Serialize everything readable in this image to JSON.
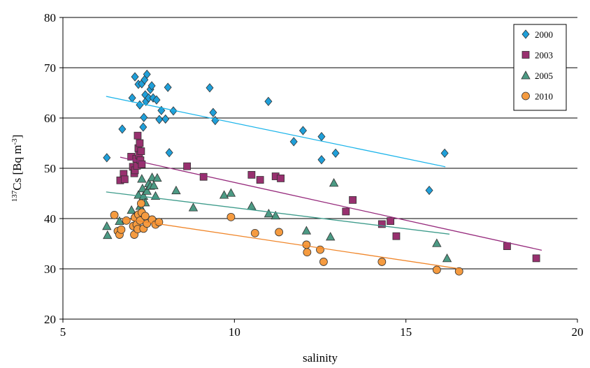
{
  "chart_data": {
    "type": "scatter",
    "xlabel": "salinity",
    "ylabel": [
      "137",
      "Cs [Bq m",
      "-3",
      "]"
    ],
    "xlim": [
      5,
      20
    ],
    "xticks": [
      5,
      10,
      15,
      20
    ],
    "ylim": [
      20,
      80
    ],
    "yticks": [
      20,
      30,
      40,
      50,
      60,
      70,
      80
    ],
    "grid": true,
    "legend": "upper right",
    "series": [
      {
        "name": "2000",
        "color": "#1f9fd9",
        "marker": "diamond",
        "line_color": "#1cb4ea",
        "x": [
          6.28,
          6.73,
          7.02,
          7.1,
          7.2,
          7.24,
          7.3,
          7.34,
          7.38,
          7.4,
          7.42,
          7.45,
          7.5,
          7.55,
          7.59,
          7.63,
          7.73,
          7.81,
          7.87,
          7.99,
          8.06,
          8.1,
          8.22,
          9.28,
          9.38,
          9.44,
          10.99,
          11.73,
          12.0,
          12.54,
          12.54,
          12.95,
          15.68,
          16.13,
          7.36
        ],
        "values": [
          52.1,
          57.8,
          64.0,
          68.2,
          66.7,
          62.6,
          66.8,
          58.2,
          67.6,
          64.6,
          63.3,
          68.7,
          64.0,
          65.7,
          66.4,
          64.0,
          63.6,
          59.7,
          61.5,
          59.8,
          66.1,
          53.1,
          61.4,
          66.0,
          61.1,
          59.5,
          63.3,
          55.3,
          57.5,
          56.3,
          51.7,
          53.0,
          45.6,
          53.0,
          60.1
        ],
        "trendline": {
          "x": [
            6.26,
            16.15
          ],
          "y": [
            64.3,
            50.3
          ]
        }
      },
      {
        "name": "2003",
        "color": "#98306f",
        "marker": "square",
        "line_color": "#962a7c",
        "x": [
          6.67,
          6.77,
          6.8,
          6.99,
          7.04,
          7.08,
          7.1,
          7.14,
          7.16,
          7.18,
          7.2,
          7.22,
          7.24,
          7.26,
          7.28,
          7.3,
          8.62,
          9.1,
          10.5,
          10.75,
          11.2,
          11.35,
          13.25,
          13.45,
          14.3,
          14.55,
          14.72,
          17.95,
          18.8
        ],
        "values": [
          47.6,
          48.9,
          47.8,
          52.3,
          50.3,
          49.0,
          49.6,
          51.9,
          50.5,
          56.5,
          54.0,
          52.6,
          55.0,
          51.6,
          53.4,
          50.8,
          50.4,
          48.3,
          48.7,
          47.7,
          48.4,
          48.0,
          41.4,
          43.7,
          38.9,
          39.5,
          36.5,
          34.5,
          32.1
        ],
        "trendline": {
          "x": [
            6.67,
            18.96
          ],
          "y": [
            52.2,
            33.7
          ]
        }
      },
      {
        "name": "2005",
        "color": "#4c9a84",
        "marker": "triangle",
        "line_color": "#3f9c8c",
        "x": [
          6.28,
          6.3,
          6.65,
          7.0,
          7.1,
          7.2,
          7.25,
          7.3,
          7.32,
          7.35,
          7.4,
          7.45,
          7.5,
          7.55,
          7.6,
          7.65,
          7.7,
          7.75,
          7.3,
          8.3,
          8.8,
          9.7,
          9.9,
          10.5,
          11.0,
          11.2,
          12.1,
          12.8,
          12.9,
          15.9,
          16.2
        ],
        "values": [
          38.5,
          36.7,
          39.5,
          41.7,
          40.5,
          44.7,
          42.5,
          47.9,
          46.0,
          44.5,
          43.2,
          45.5,
          47.0,
          46.5,
          48.2,
          46.6,
          44.5,
          48.1,
          41.8,
          45.6,
          42.2,
          44.7,
          45.1,
          42.5,
          41.0,
          40.6,
          37.6,
          36.4,
          47.1,
          35.1,
          32.1
        ],
        "trendline": {
          "x": [
            6.26,
            16.27
          ],
          "y": [
            45.3,
            36.9
          ]
        }
      },
      {
        "name": "2010",
        "color": "#f59b40",
        "marker": "circle",
        "line_color": "#f0862a",
        "x": [
          6.5,
          6.6,
          6.65,
          6.7,
          6.85,
          7.05,
          7.08,
          7.1,
          7.15,
          7.18,
          7.2,
          7.25,
          7.28,
          7.3,
          7.35,
          7.4,
          7.45,
          7.6,
          7.7,
          7.8,
          9.9,
          10.6,
          11.3,
          12.1,
          12.12,
          12.5,
          12.6,
          14.3,
          15.9,
          16.55
        ],
        "values": [
          40.7,
          37.5,
          36.8,
          37.8,
          39.6,
          38.5,
          36.8,
          40.2,
          38.8,
          37.9,
          40.8,
          39.6,
          43.0,
          41.2,
          38.0,
          40.5,
          39.0,
          39.8,
          38.8,
          39.3,
          40.3,
          37.1,
          37.3,
          34.8,
          33.3,
          33.8,
          31.4,
          31.4,
          29.8,
          29.5
        ],
        "trendline": {
          "x": [
            6.75,
            16.58
          ],
          "y": [
            40.0,
            30.0
          ]
        }
      }
    ]
  }
}
